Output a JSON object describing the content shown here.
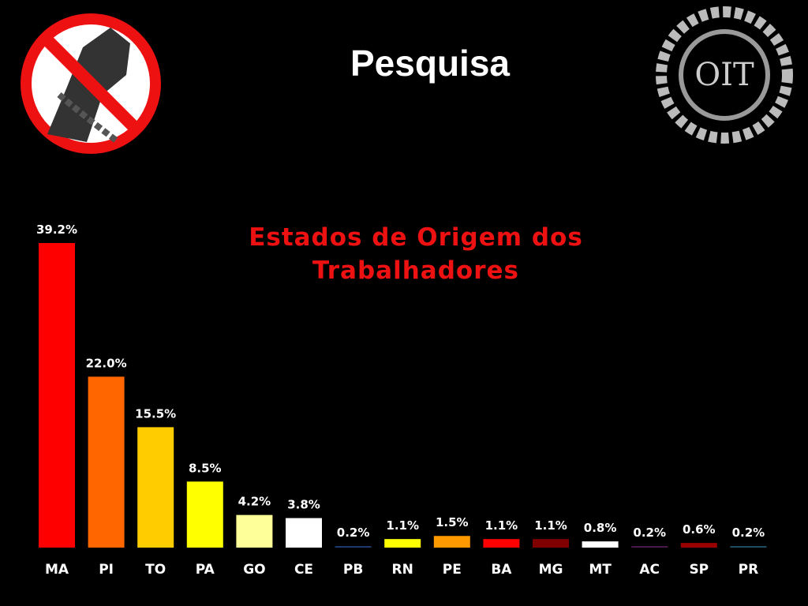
{
  "chart_data": {
    "type": "bar",
    "title": "Pesquisa",
    "subtitle": "Estados de Origem dos Trabalhadores",
    "categories": [
      "MA",
      "PI",
      "TO",
      "PA",
      "GO",
      "CE",
      "PB",
      "RN",
      "PE",
      "BA",
      "MG",
      "MT",
      "AC",
      "SP",
      "PR"
    ],
    "values": [
      39.2,
      22.0,
      15.5,
      8.5,
      4.2,
      3.8,
      0.2,
      1.1,
      1.5,
      1.1,
      1.1,
      0.8,
      0.2,
      0.6,
      0.2
    ],
    "value_labels": [
      "39.2%",
      "22.0%",
      "15.5%",
      "8.5%",
      "4.2%",
      "3.8%",
      "0.2%",
      "1.1%",
      "1.5%",
      "1.1%",
      "1.1%",
      "0.8%",
      "0.2%",
      "0.6%",
      "0.2%"
    ],
    "colors": [
      "#ff0000",
      "#ff6600",
      "#ffcc00",
      "#ffff00",
      "#ffff99",
      "#ffffff",
      "#1f3a6e",
      "#ffff00",
      "#ff9900",
      "#ff0000",
      "#800000",
      "#ffffff",
      "#4a1a4a",
      "#990000",
      "#1f4f5f"
    ]
  },
  "logo_text": "OIT"
}
